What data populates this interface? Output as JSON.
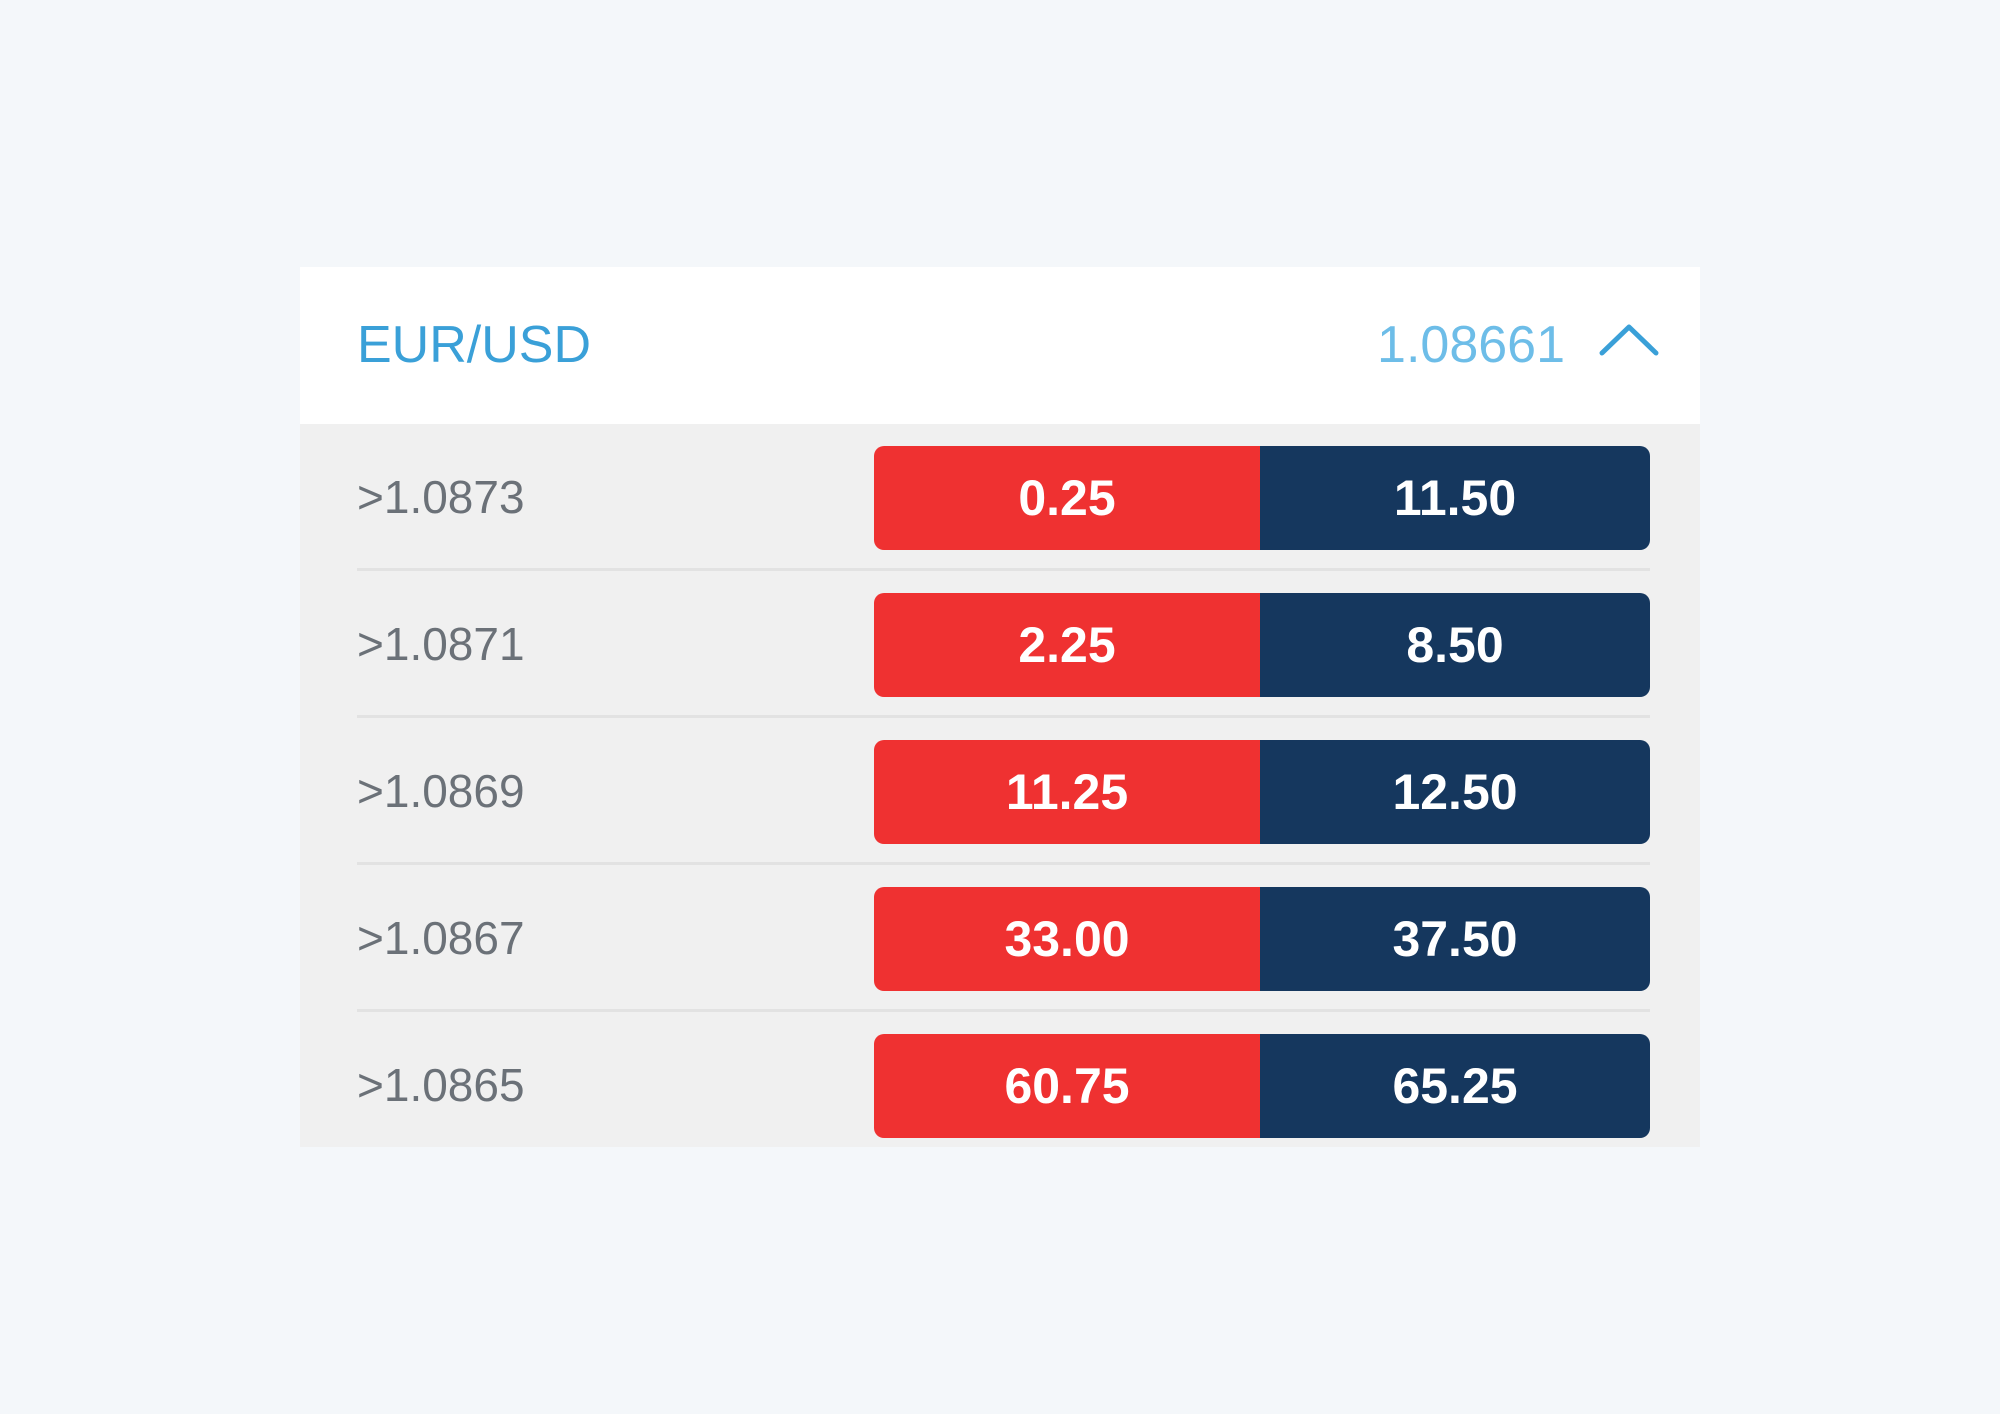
{
  "header": {
    "pair": "EUR/USD",
    "price": "1.08661",
    "collapse_icon": "chevron-up-icon"
  },
  "rows": [
    {
      "strike": ">1.0873",
      "sell": "0.25",
      "buy": "11.50"
    },
    {
      "strike": ">1.0871",
      "sell": "2.25",
      "buy": "8.50"
    },
    {
      "strike": ">1.0869",
      "sell": "11.25",
      "buy": "12.50"
    },
    {
      "strike": ">1.0867",
      "sell": "33.00",
      "buy": "37.50"
    },
    {
      "strike": ">1.0865",
      "sell": "60.75",
      "buy": "65.25"
    }
  ],
  "colors": {
    "background": "#f4f7fa",
    "header_bg": "#ffffff",
    "body_bg": "#f0f0f0",
    "pair_text": "#3aa0d8",
    "price_text": "#6dbde8",
    "sell": "#ef3131",
    "buy": "#15375e"
  }
}
